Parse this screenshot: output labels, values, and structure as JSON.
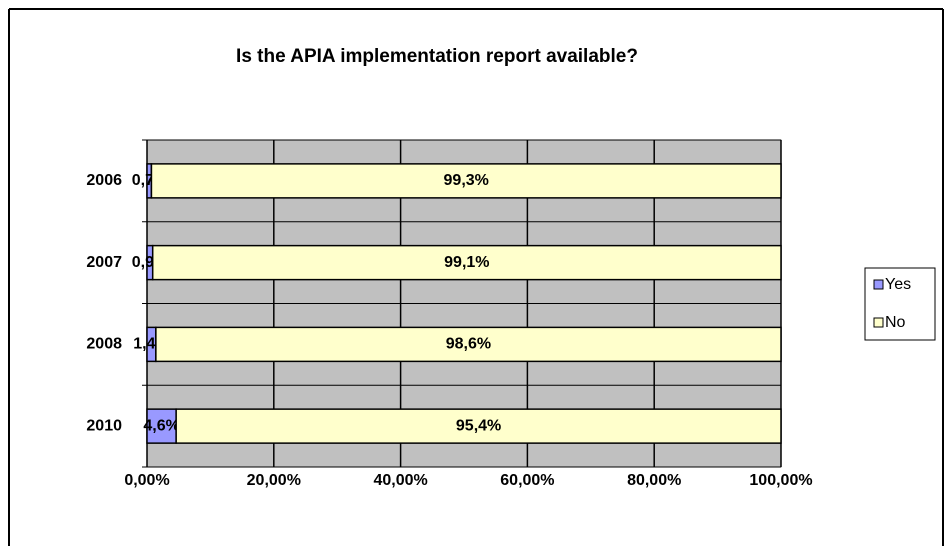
{
  "chart_data": {
    "type": "stacked_barh",
    "title": "Is the APIA implementation report available?",
    "categories": [
      "2006",
      "2007",
      "2008",
      "2010"
    ],
    "series": [
      {
        "name": "Yes",
        "color": "#9999ff",
        "values": [
          0.7,
          0.9,
          1.4,
          4.6
        ],
        "value_labels": [
          "0,7%",
          "0,9%",
          "1,4%",
          "4,6%"
        ]
      },
      {
        "name": "No",
        "color": "#ffffcc",
        "values": [
          99.3,
          99.1,
          98.6,
          95.4
        ],
        "value_labels": [
          "99,3%",
          "99,1%",
          "98,6%",
          "95,4%"
        ]
      }
    ],
    "xlim": [
      0,
      100
    ],
    "xticks": [
      {
        "value": 0,
        "label": "0,00%"
      },
      {
        "value": 20,
        "label": "20,00%"
      },
      {
        "value": 40,
        "label": "40,00%"
      },
      {
        "value": 60,
        "label": "60,00%"
      },
      {
        "value": 80,
        "label": "80,00%"
      },
      {
        "value": 100,
        "label": "100,00%"
      }
    ],
    "grid": true,
    "legend": "right"
  }
}
